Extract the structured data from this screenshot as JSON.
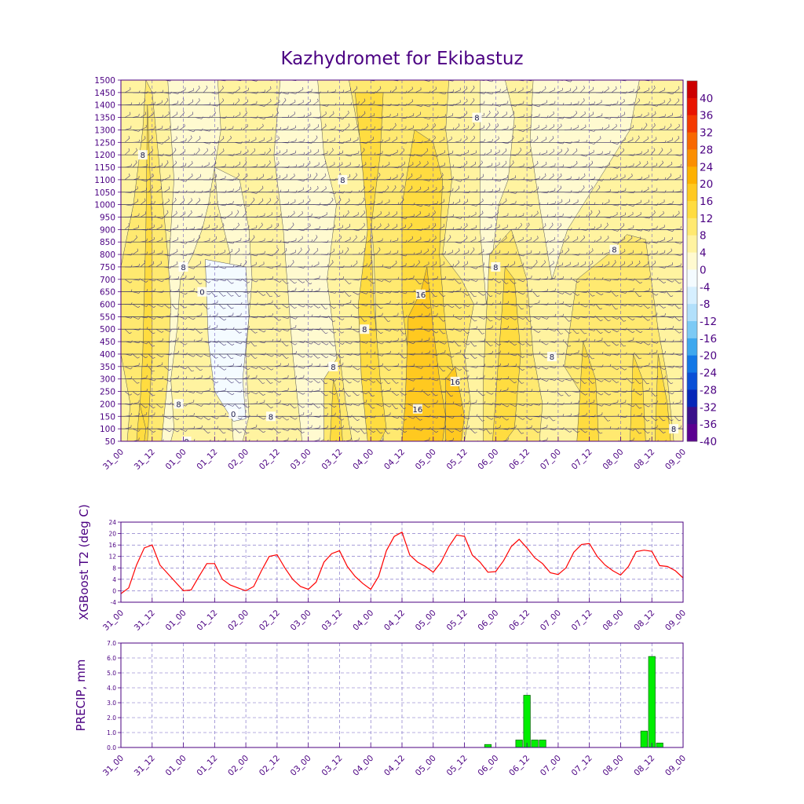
{
  "title": "Kazhydromet for Ekibastuz",
  "x_ticks": [
    "31_00",
    "31_12",
    "01_00",
    "01_12",
    "02_00",
    "02_12",
    "03_00",
    "03_12",
    "04_00",
    "04_12",
    "05_00",
    "05_12",
    "06_00",
    "06_12",
    "07_00",
    "07_12",
    "08_00",
    "08_12",
    "09_00"
  ],
  "colors": {
    "frame": "#4b0082",
    "t2_line": "#ff0000",
    "precip_bar": "#00ee00",
    "precip_edge": "#006400",
    "grid": "#6a5acd"
  },
  "chart_data": [
    {
      "type": "heatmap",
      "title": "Kazhydromet for Ekibastuz",
      "ylabel": "",
      "y_ticks": [
        50,
        100,
        150,
        200,
        250,
        300,
        350,
        400,
        450,
        500,
        550,
        600,
        650,
        700,
        750,
        800,
        850,
        900,
        950,
        1000,
        1050,
        1100,
        1150,
        1200,
        1250,
        1300,
        1350,
        1400,
        1450,
        1500
      ],
      "ylim": [
        50,
        1500
      ],
      "colorbar": {
        "labels": [
          "40",
          "36",
          "32",
          "28",
          "24",
          "20",
          "16",
          "12",
          "8",
          "4",
          "0",
          "-4",
          "-8",
          "-12",
          "-16",
          "-20",
          "-24",
          "-28",
          "-32",
          "-36",
          "-40"
        ],
        "colors": [
          "#cc0000",
          "#e81400",
          "#f43a00",
          "#f86800",
          "#fb8f00",
          "#fdb100",
          "#ffc920",
          "#ffdc40",
          "#ffe970",
          "#fff3a0",
          "#fffad0",
          "#f4fbff",
          "#d6efff",
          "#b2e0fb",
          "#7ccaf5",
          "#3ea8ee",
          "#1277e6",
          "#0a4fd6",
          "#0627b8",
          "#3a108a",
          "#5a0090"
        ]
      },
      "contour_labels": [
        "8",
        "8",
        "8",
        "0",
        "0",
        "0",
        "0",
        "8",
        "8",
        "8",
        "16",
        "8",
        "8",
        "16",
        "16",
        "8",
        "8",
        "8",
        "8",
        "8",
        "8",
        "8"
      ],
      "description_of_field": "temperature (deg C) over time and height with wind barbs"
    },
    {
      "type": "line",
      "ylabel": "XGBoost T2 (deg C)",
      "ylim": [
        -4,
        24
      ],
      "y_ticks": [
        -4,
        0,
        4,
        8,
        12,
        16,
        20,
        24
      ],
      "x_index_range": [
        0,
        18
      ],
      "series": [
        {
          "x": [
            0,
            0.25,
            0.5,
            0.75,
            1,
            1.25,
            1.5,
            1.75,
            2,
            2.25,
            2.5,
            2.75,
            3,
            3.25,
            3.5,
            3.75,
            4,
            4.25,
            4.5,
            4.75,
            5,
            5.25,
            5.5,
            5.75,
            6,
            6.25,
            6.5,
            6.75,
            7,
            7.25,
            7.5,
            7.75,
            8,
            8.25,
            8.5,
            8.75,
            9,
            9.25,
            9.5,
            9.75,
            10,
            10.25,
            10.5,
            10.75,
            11,
            11.25,
            11.5,
            11.75,
            12,
            12.25,
            12.5,
            12.75,
            13,
            13.25,
            13.5,
            13.75,
            14,
            14.25,
            14.5,
            14.75,
            15,
            15.25,
            15.5,
            15.75,
            16,
            16.25,
            16.5,
            16.75,
            17,
            17.25,
            17.5,
            17.75,
            18
          ],
          "values": [
            -1,
            1,
            9,
            15,
            16,
            9,
            6,
            3,
            0,
            0.3,
            5,
            9.5,
            9.5,
            4,
            2,
            1,
            0,
            1.5,
            7,
            12,
            12.6,
            8,
            4,
            1.5,
            0.5,
            3,
            10,
            13,
            14,
            8.5,
            5,
            2.5,
            0.5,
            5,
            14,
            19,
            20.5,
            12.5,
            10,
            8.5,
            6.5,
            10,
            15.5,
            19.5,
            19,
            12.5,
            10,
            6.5,
            6.7,
            10.5,
            15.5,
            18,
            15,
            11.5,
            9.5,
            6.3,
            5.7,
            8,
            13.5,
            16.2,
            16.5,
            12,
            9,
            7,
            5.5,
            8.5,
            13.7,
            14.2,
            13.8,
            8.8,
            8.5,
            7,
            4.5
          ]
        }
      ]
    },
    {
      "type": "bar",
      "ylabel": "PRECIP, mm",
      "ylim": [
        0,
        7
      ],
      "y_ticks": [
        "0.0",
        "1.0",
        "2.0",
        "3.0",
        "4.0",
        "5.0",
        "6.0",
        "7.0"
      ],
      "x_index_range": [
        0,
        18
      ],
      "x": [
        11.75,
        12.75,
        13.0,
        13.25,
        13.5,
        16.75,
        17.0,
        17.25
      ],
      "values": [
        0.2,
        0.5,
        3.5,
        0.5,
        0.5,
        1.1,
        6.1,
        0.3
      ]
    }
  ]
}
